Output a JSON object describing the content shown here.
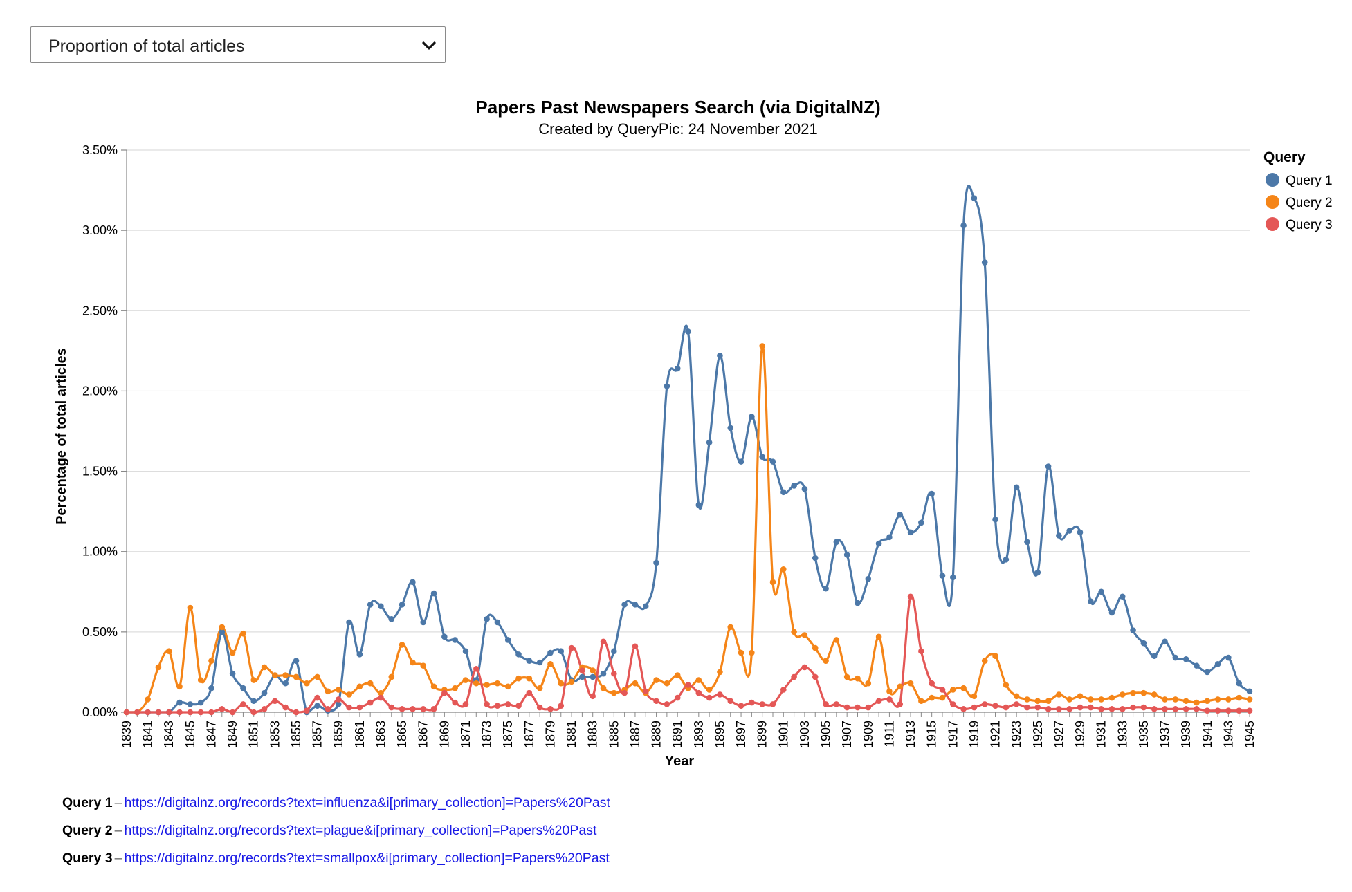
{
  "selector": {
    "value": "Proportion of total articles",
    "icon": "chevron-down-icon"
  },
  "colors": {
    "query1": "#4c78a8",
    "query2": "#f58518",
    "query3": "#e45756",
    "grid": "#dddddd",
    "link": "#1a1ae6"
  },
  "chart_data": {
    "type": "line",
    "title": "Papers Past Newspapers Search (via DigitalNZ)",
    "subtitle": "Created by QueryPic: 24 November 2021",
    "xlabel": "Year",
    "ylabel": "Percentage of total articles",
    "ylim": [
      0,
      3.5
    ],
    "yticks": [
      "0.00%",
      "0.50%",
      "1.00%",
      "1.50%",
      "2.00%",
      "2.50%",
      "3.00%",
      "3.50%"
    ],
    "xticks": [
      "1839",
      "1841",
      "1843",
      "1845",
      "1847",
      "1849",
      "1851",
      "1853",
      "1855",
      "1857",
      "1859",
      "1861",
      "1863",
      "1865",
      "1867",
      "1869",
      "1871",
      "1873",
      "1875",
      "1877",
      "1879",
      "1881",
      "1883",
      "1885",
      "1887",
      "1889",
      "1891",
      "1893",
      "1895",
      "1897",
      "1899",
      "1901",
      "1903",
      "1905",
      "1907",
      "1909",
      "1911",
      "1913",
      "1915",
      "1917",
      "1919",
      "1921",
      "1923",
      "1925",
      "1927",
      "1929",
      "1931",
      "1933",
      "1935",
      "1937",
      "1939",
      "1941",
      "1943",
      "1945"
    ],
    "grid": true,
    "legend_title": "Query",
    "legend_position": "top-right",
    "x_start": 1839,
    "x_end": 1945,
    "series": [
      {
        "name": "Query 1",
        "values": [
          0.0,
          0.0,
          0.0,
          0.0,
          0.0,
          0.06,
          0.05,
          0.06,
          0.15,
          0.5,
          0.24,
          0.15,
          0.07,
          0.12,
          0.23,
          0.18,
          0.32,
          0.0,
          0.04,
          0.01,
          0.05,
          0.56,
          0.36,
          0.67,
          0.66,
          0.58,
          0.67,
          0.81,
          0.56,
          0.74,
          0.47,
          0.45,
          0.38,
          0.2,
          0.58,
          0.56,
          0.45,
          0.36,
          0.32,
          0.31,
          0.37,
          0.38,
          0.2,
          0.22,
          0.22,
          0.24,
          0.38,
          0.67,
          0.67,
          0.66,
          0.93,
          2.03,
          2.14,
          2.37,
          1.29,
          1.68,
          2.22,
          1.77,
          1.56,
          1.84,
          1.59,
          1.56,
          1.37,
          1.41,
          1.39,
          0.96,
          0.77,
          1.06,
          0.98,
          0.68,
          0.83,
          1.05,
          1.09,
          1.23,
          1.12,
          1.18,
          1.36,
          0.85,
          0.84,
          3.03,
          3.2,
          2.8,
          1.2,
          0.95,
          1.4,
          1.06,
          0.87,
          1.53,
          1.1,
          1.13,
          1.12,
          0.69,
          0.75,
          0.62,
          0.72,
          0.51,
          0.43,
          0.35,
          0.44,
          0.34,
          0.33,
          0.29,
          0.25,
          0.3,
          0.34,
          0.18,
          0.13
        ]
      },
      {
        "name": "Query 2",
        "values": [
          0.0,
          0.0,
          0.08,
          0.28,
          0.38,
          0.16,
          0.65,
          0.2,
          0.32,
          0.53,
          0.37,
          0.49,
          0.2,
          0.28,
          0.23,
          0.23,
          0.22,
          0.18,
          0.22,
          0.13,
          0.14,
          0.11,
          0.16,
          0.18,
          0.12,
          0.22,
          0.42,
          0.31,
          0.29,
          0.16,
          0.14,
          0.15,
          0.2,
          0.18,
          0.17,
          0.18,
          0.16,
          0.21,
          0.21,
          0.15,
          0.3,
          0.18,
          0.19,
          0.28,
          0.26,
          0.15,
          0.12,
          0.14,
          0.18,
          0.12,
          0.2,
          0.18,
          0.23,
          0.15,
          0.2,
          0.14,
          0.25,
          0.53,
          0.37,
          0.37,
          2.28,
          0.81,
          0.89,
          0.5,
          0.48,
          0.4,
          0.32,
          0.45,
          0.22,
          0.21,
          0.18,
          0.47,
          0.13,
          0.16,
          0.18,
          0.07,
          0.09,
          0.09,
          0.14,
          0.15,
          0.1,
          0.32,
          0.35,
          0.17,
          0.1,
          0.08,
          0.07,
          0.07,
          0.11,
          0.08,
          0.1,
          0.08,
          0.08,
          0.09,
          0.11,
          0.12,
          0.12,
          0.11,
          0.08,
          0.08,
          0.07,
          0.06,
          0.07,
          0.08,
          0.08,
          0.09,
          0.08
        ]
      },
      {
        "name": "Query 3",
        "values": [
          0.0,
          0.0,
          0.0,
          0.0,
          0.0,
          0.0,
          0.0,
          0.0,
          0.0,
          0.02,
          0.0,
          0.05,
          0.0,
          0.02,
          0.07,
          0.03,
          0.0,
          0.01,
          0.09,
          0.02,
          0.08,
          0.03,
          0.03,
          0.06,
          0.09,
          0.03,
          0.02,
          0.02,
          0.02,
          0.02,
          0.12,
          0.06,
          0.05,
          0.27,
          0.05,
          0.04,
          0.05,
          0.04,
          0.12,
          0.03,
          0.02,
          0.04,
          0.4,
          0.26,
          0.1,
          0.44,
          0.24,
          0.12,
          0.41,
          0.13,
          0.07,
          0.05,
          0.09,
          0.17,
          0.12,
          0.09,
          0.11,
          0.07,
          0.04,
          0.06,
          0.05,
          0.05,
          0.14,
          0.22,
          0.28,
          0.22,
          0.05,
          0.05,
          0.03,
          0.03,
          0.03,
          0.07,
          0.08,
          0.05,
          0.72,
          0.38,
          0.18,
          0.14,
          0.05,
          0.02,
          0.03,
          0.05,
          0.04,
          0.03,
          0.05,
          0.03,
          0.03,
          0.02,
          0.02,
          0.02,
          0.03,
          0.03,
          0.02,
          0.02,
          0.02,
          0.03,
          0.03,
          0.02,
          0.02,
          0.02,
          0.02,
          0.02,
          0.01,
          0.01,
          0.01,
          0.01,
          0.01
        ]
      }
    ]
  },
  "queries": [
    {
      "label": "Query 1",
      "sep": "–",
      "url": "https://digitalnz.org/records?text=influenza&i[primary_collection]=Papers%20Past"
    },
    {
      "label": "Query 2",
      "sep": "–",
      "url": "https://digitalnz.org/records?text=plague&i[primary_collection]=Papers%20Past"
    },
    {
      "label": "Query 3",
      "sep": "–",
      "url": "https://digitalnz.org/records?text=smallpox&i[primary_collection]=Papers%20Past"
    }
  ]
}
